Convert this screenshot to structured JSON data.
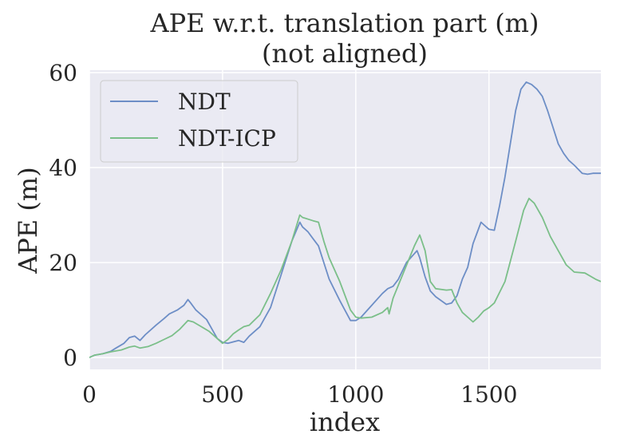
{
  "chart_data": {
    "type": "line",
    "title": "APE w.r.t. translation part (m)",
    "subtitle": "(not aligned)",
    "xlabel": "index",
    "ylabel": "APE (m)",
    "xlim": [
      0,
      1920
    ],
    "ylim": [
      -2.5,
      60.5
    ],
    "xticks": [
      0,
      500,
      1000,
      1500
    ],
    "yticks": [
      0,
      20,
      40,
      60
    ],
    "grid": true,
    "legend_position": "top-left",
    "colors": {
      "background": "#eaeaf2",
      "grid": "#ffffff",
      "text": "#262626"
    },
    "series": [
      {
        "name": "NDT",
        "color": "#6d8ec6",
        "x": [
          0,
          20,
          50,
          80,
          100,
          130,
          150,
          170,
          190,
          210,
          250,
          280,
          300,
          330,
          355,
          370,
          380,
          400,
          420,
          440,
          460,
          480,
          500,
          520,
          540,
          560,
          580,
          600,
          640,
          680,
          720,
          760,
          790,
          800,
          820,
          840,
          860,
          880,
          900,
          940,
          980,
          1000,
          1020,
          1060,
          1100,
          1120,
          1140,
          1160,
          1190,
          1230,
          1240,
          1260,
          1280,
          1300,
          1340,
          1360,
          1380,
          1400,
          1420,
          1440,
          1470,
          1480,
          1500,
          1520,
          1540,
          1560,
          1580,
          1600,
          1620,
          1640,
          1660,
          1680,
          1700,
          1720,
          1740,
          1760,
          1780,
          1800,
          1820,
          1850,
          1870,
          1890,
          1910,
          1920
        ],
        "y": [
          0,
          0.5,
          0.8,
          1.3,
          2.0,
          3.0,
          4.2,
          4.5,
          3.6,
          4.8,
          6.8,
          8.2,
          9.2,
          10.0,
          11.0,
          12.2,
          11.5,
          10.0,
          9.0,
          8.0,
          6.0,
          4.0,
          3.2,
          3.0,
          3.3,
          3.6,
          3.2,
          4.5,
          6.5,
          10.5,
          17.5,
          24.5,
          28.5,
          27.5,
          26.5,
          25.0,
          23.5,
          20.0,
          16.5,
          12.0,
          7.8,
          7.8,
          8.5,
          11.0,
          13.5,
          14.5,
          15.0,
          16.5,
          20.0,
          22.5,
          21.0,
          17.0,
          14.0,
          12.8,
          11.2,
          11.5,
          13.0,
          16.5,
          19.0,
          24.0,
          28.5,
          28.0,
          27.0,
          26.8,
          32.0,
          38.0,
          45.0,
          52.0,
          56.5,
          58.0,
          57.5,
          56.5,
          55.0,
          52.0,
          48.5,
          45.0,
          43.0,
          41.5,
          40.5,
          38.8,
          38.6,
          38.8,
          38.8,
          38.8
        ]
      },
      {
        "name": "NDT-ICP",
        "color": "#7bbf89",
        "x": [
          0,
          20,
          50,
          80,
          120,
          150,
          170,
          190,
          220,
          250,
          280,
          310,
          340,
          370,
          390,
          420,
          450,
          470,
          490,
          500,
          520,
          540,
          560,
          580,
          600,
          640,
          680,
          720,
          760,
          790,
          800,
          840,
          860,
          880,
          900,
          940,
          980,
          1000,
          1020,
          1060,
          1100,
          1120,
          1125,
          1140,
          1180,
          1220,
          1240,
          1260,
          1280,
          1300,
          1340,
          1360,
          1380,
          1400,
          1420,
          1440,
          1460,
          1480,
          1500,
          1520,
          1560,
          1600,
          1630,
          1650,
          1670,
          1700,
          1730,
          1760,
          1790,
          1820,
          1860,
          1900,
          1920
        ],
        "y": [
          0,
          0.5,
          0.8,
          1.2,
          1.6,
          2.2,
          2.4,
          2.0,
          2.3,
          3.0,
          3.8,
          4.6,
          6.0,
          7.8,
          7.5,
          6.5,
          5.5,
          4.5,
          3.5,
          3.0,
          3.8,
          5.0,
          5.8,
          6.5,
          6.8,
          9.0,
          13.5,
          18.5,
          24.5,
          30.0,
          29.5,
          28.8,
          28.5,
          24.5,
          21.0,
          16.0,
          10.0,
          8.5,
          8.3,
          8.5,
          9.5,
          10.5,
          9.2,
          12.5,
          18.0,
          23.5,
          25.8,
          22.5,
          16.0,
          14.5,
          14.2,
          14.3,
          11.5,
          9.5,
          8.5,
          7.5,
          8.5,
          9.8,
          10.5,
          11.5,
          16.0,
          24.5,
          31.0,
          33.5,
          32.5,
          29.5,
          25.5,
          22.5,
          19.5,
          18.0,
          17.8,
          16.5,
          16.0
        ]
      }
    ]
  }
}
